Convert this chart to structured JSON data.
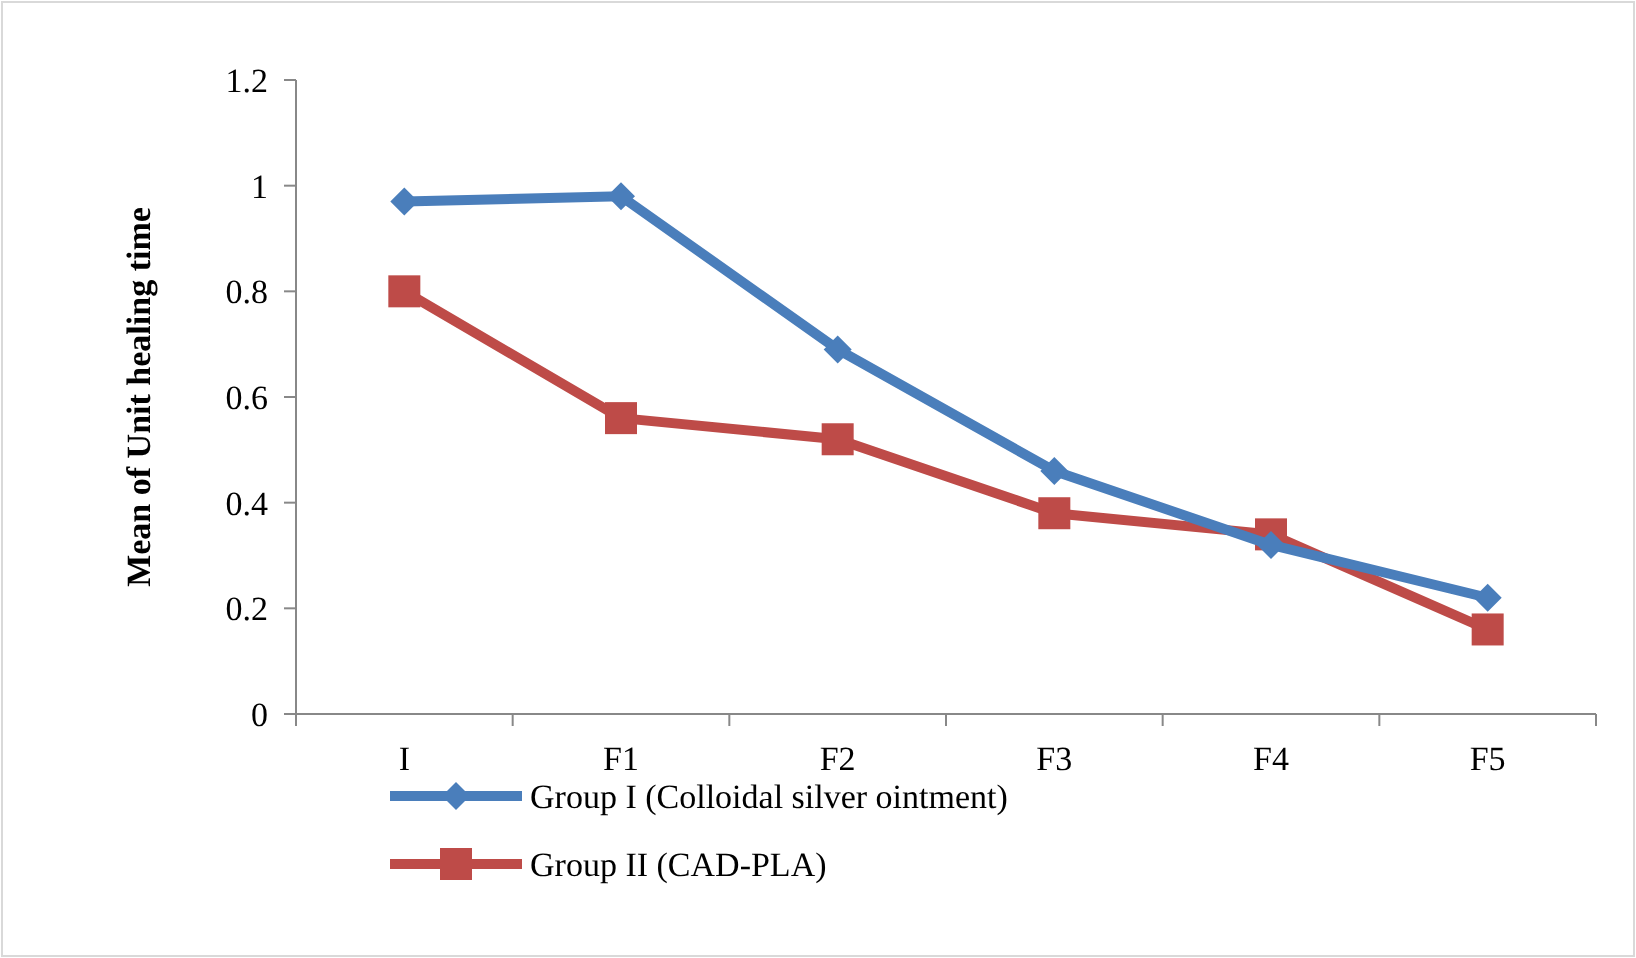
{
  "chart_data": {
    "type": "line",
    "ylabel": "Mean of Unit healing time",
    "categories": [
      "I",
      "F1",
      "F2",
      "F3",
      "F4",
      "F5"
    ],
    "series": [
      {
        "name": "Group I (Colloidal silver ointment)",
        "color": "#4a7ebb",
        "marker": "diamond",
        "values": [
          0.97,
          0.98,
          0.69,
          0.46,
          0.32,
          0.22
        ]
      },
      {
        "name": "Group II (CAD-PLA)",
        "color": "#be4b48",
        "marker": "square",
        "values": [
          0.8,
          0.56,
          0.52,
          0.38,
          0.34,
          0.16
        ]
      }
    ],
    "ylim": [
      0,
      1.2
    ],
    "yticks": [
      0,
      0.2,
      0.4,
      0.6,
      0.8,
      1,
      1.2
    ],
    "grid": false,
    "legend": "bottom"
  }
}
